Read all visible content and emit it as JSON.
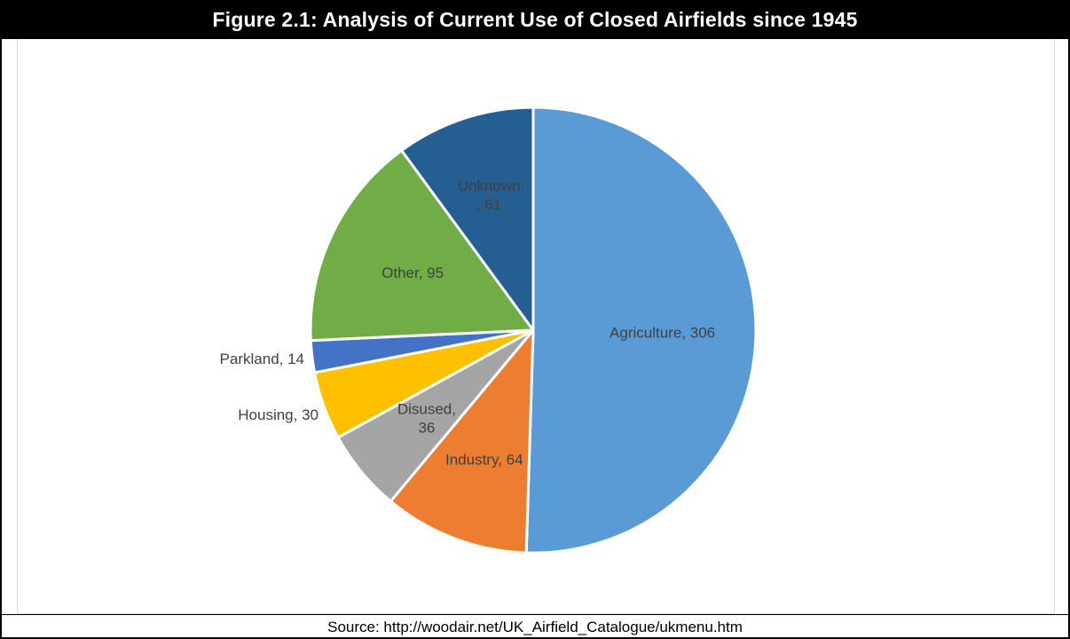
{
  "figure": {
    "title": "Figure 2.1: Analysis of Current Use of Closed Airfields since 1945",
    "source": "Source: http://woodair.net/UK_Airfield_Catalogue/ukmenu.htm"
  },
  "chart_data": {
    "type": "pie",
    "title": "Figure 2.1: Analysis of Current Use of Closed Airfields since 1945",
    "slices": [
      {
        "label": "Agriculture",
        "value": 306,
        "color": "#5b9bd5",
        "data_label": "Agriculture, 306",
        "label_pos": "inside"
      },
      {
        "label": "Industry",
        "value": 64,
        "color": "#ed7d31",
        "data_label": "Industry, 64",
        "label_pos": "inside"
      },
      {
        "label": "Disused",
        "value": 36,
        "color": "#a5a5a5",
        "data_label": "Disused,\n36",
        "label_pos": "inside"
      },
      {
        "label": "Housing",
        "value": 30,
        "color": "#ffc000",
        "data_label": "Housing, 30",
        "label_pos": "outside"
      },
      {
        "label": "Parkland",
        "value": 14,
        "color": "#4472c4",
        "data_label": "Parkland, 14",
        "label_pos": "outside"
      },
      {
        "label": "Other",
        "value": 95,
        "color": "#70ad47",
        "data_label": "Other, 95",
        "label_pos": "inside"
      },
      {
        "label": "Unknown",
        "value": 61,
        "color": "#255e91",
        "data_label": "Unknown\n, 61",
        "label_pos": "inside"
      }
    ],
    "start_angle": "12 o'clock",
    "direction": "clockwise",
    "legend": "none"
  }
}
